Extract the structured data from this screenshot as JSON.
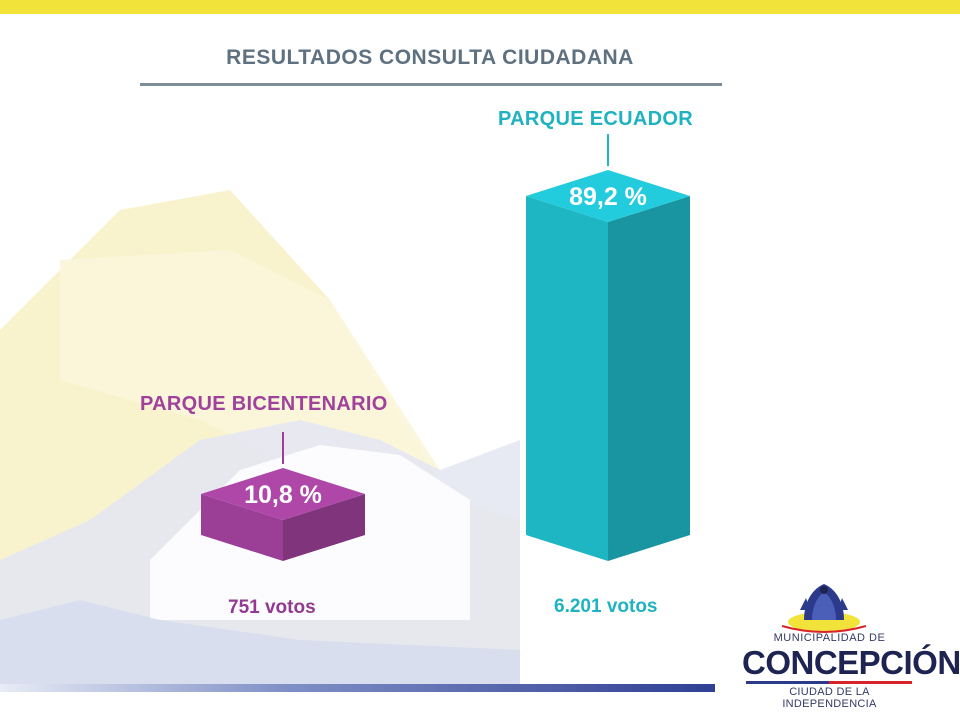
{
  "chart_data": {
    "type": "bar",
    "title": "RESULTADOS CONSULTA CIUDADANA",
    "categories": [
      "PARQUE BICENTENARIO",
      "PARQUE ECUADOR"
    ],
    "values": [
      10.8,
      89.2
    ],
    "value_labels": [
      "10,8 %",
      "89,2 %"
    ],
    "votes": [
      751,
      6201
    ],
    "vote_labels": [
      "751 votos",
      "6.201 votos"
    ],
    "colors": [
      "#9b3f96",
      "#1fb6c4"
    ],
    "ylim": [
      0,
      100
    ],
    "xlabel": "",
    "ylabel": "",
    "grid": false,
    "legend": "none"
  },
  "logo": {
    "line1": "MUNICIPALIDAD DE",
    "line2": "CONCEPCIÓN",
    "line3": "CIUDAD DE LA INDEPENDENCIA"
  },
  "colors": {
    "top_bar": "#f2e33a",
    "bottom_bar": "#2f3f94",
    "title": "#5e7180"
  }
}
